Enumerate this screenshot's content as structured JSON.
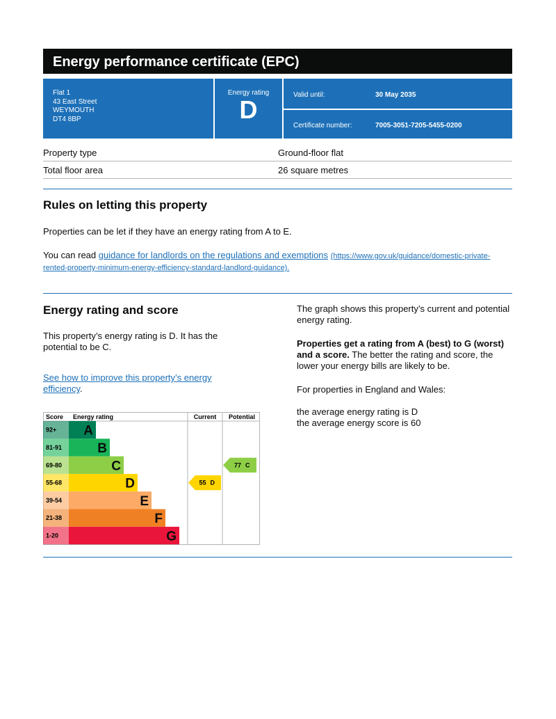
{
  "header": {
    "title": "Energy performance certificate (EPC)"
  },
  "summary": {
    "address": [
      "Flat 1",
      "43 East Street",
      "WEYMOUTH",
      "DT4 8BP"
    ],
    "rating_label": "Energy rating",
    "rating": "D",
    "valid_until_label": "Valid until:",
    "valid_until": "30 May 2035",
    "certificate_number_label": "Certificate number:",
    "certificate_number": "7005-3051-7205-5455-0200"
  },
  "property": {
    "rows": [
      [
        "Property type",
        "Ground-floor flat"
      ],
      [
        "Total floor area",
        "26 square metres"
      ]
    ]
  },
  "rules": {
    "heading": "Rules on letting this property",
    "paragraph": "Properties can be let if they have an energy rating from A to E.",
    "read_prefix": "You can read ",
    "link": "guidance for landlords on the regulations and exemptions",
    "url": "(https://www.gov.uk/guidance/domestic-private-rented-property-minimum-energy-efficiency-standard-landlord-guidance)."
  },
  "energy": {
    "heading": "Energy rating and score",
    "paragraph": "This property’s energy rating is D. It has the potential to be C.",
    "link": "See how to improve this property’s energy efficiency",
    "link_suffix": ".",
    "right": {
      "p1": "The graph shows this property’s current and potential energy rating.",
      "p2_bold": "Properties get a rating from A (best) to G (worst) and a score.",
      "p2_rest": " The better the rating and score, the lower your energy bills are likely to be.",
      "p3": "For properties in England and Wales:",
      "p4": [
        "the average energy rating is D",
        "the average energy score is 60"
      ]
    }
  },
  "graph": {
    "headers": [
      "Score",
      "Energy rating",
      "Current",
      "Potential"
    ],
    "bands": [
      {
        "range": "92+",
        "letter": "A",
        "color": "#008054"
      },
      {
        "range": "81-91",
        "letter": "B",
        "color": "#19b459"
      },
      {
        "range": "69-80",
        "letter": "C",
        "color": "#8dce46"
      },
      {
        "range": "55-68",
        "letter": "D",
        "color": "#ffd500"
      },
      {
        "range": "39-54",
        "letter": "E",
        "color": "#fcaa65"
      },
      {
        "range": "21-38",
        "letter": "F",
        "color": "#ef8023"
      },
      {
        "range": "1-20",
        "letter": "G",
        "color": "#e9153b"
      }
    ],
    "current": {
      "score": 55,
      "rating": "D"
    },
    "potential": {
      "score": 77,
      "rating": "C"
    }
  }
}
